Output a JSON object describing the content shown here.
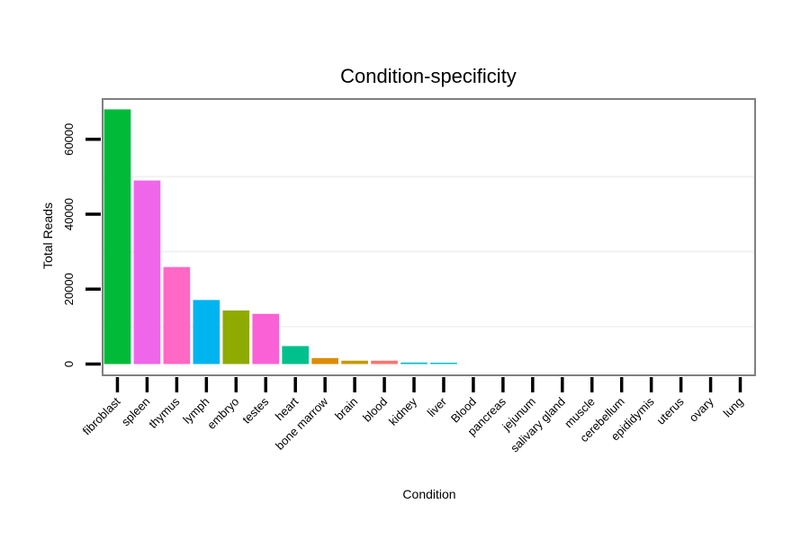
{
  "chart_data": {
    "type": "bar",
    "title": "Condition-specificity",
    "xlabel": "Condition",
    "ylabel": "Total Reads",
    "ylim": [
      0,
      70000
    ],
    "yticks": [
      0,
      20000,
      40000,
      60000
    ],
    "grid": true,
    "categories": [
      "fibroblast",
      "spleen",
      "thymus",
      "lymph",
      "embryo",
      "testes",
      "heart",
      "bone marrow",
      "brain",
      "blood",
      "kidney",
      "liver",
      "Blood",
      "pancreas",
      "jejunum",
      "salivary gland",
      "muscle",
      "cerebellum",
      "epididymis",
      "uterus",
      "ovary",
      "lung"
    ],
    "values": [
      68000,
      49000,
      25900,
      17100,
      14300,
      13400,
      4800,
      1600,
      900,
      900,
      400,
      350,
      0,
      0,
      0,
      0,
      0,
      0,
      0,
      0,
      0,
      0
    ],
    "colors": [
      "#00BA38",
      "#F066EA",
      "#FF68C4",
      "#00B4F0",
      "#8FAA00",
      "#FB61D7",
      "#00C08B",
      "#DE8C00",
      "#C49A00",
      "#F8766D",
      "#00BFC4",
      "#00BFC4",
      "#00A9FF",
      "#B385FF",
      "#7CAE00",
      "#00B8E7",
      "#619CFF",
      "#00BD5C",
      "#C77CFF",
      "#E58700",
      "#FF61C3",
      "#00C1A3"
    ]
  }
}
